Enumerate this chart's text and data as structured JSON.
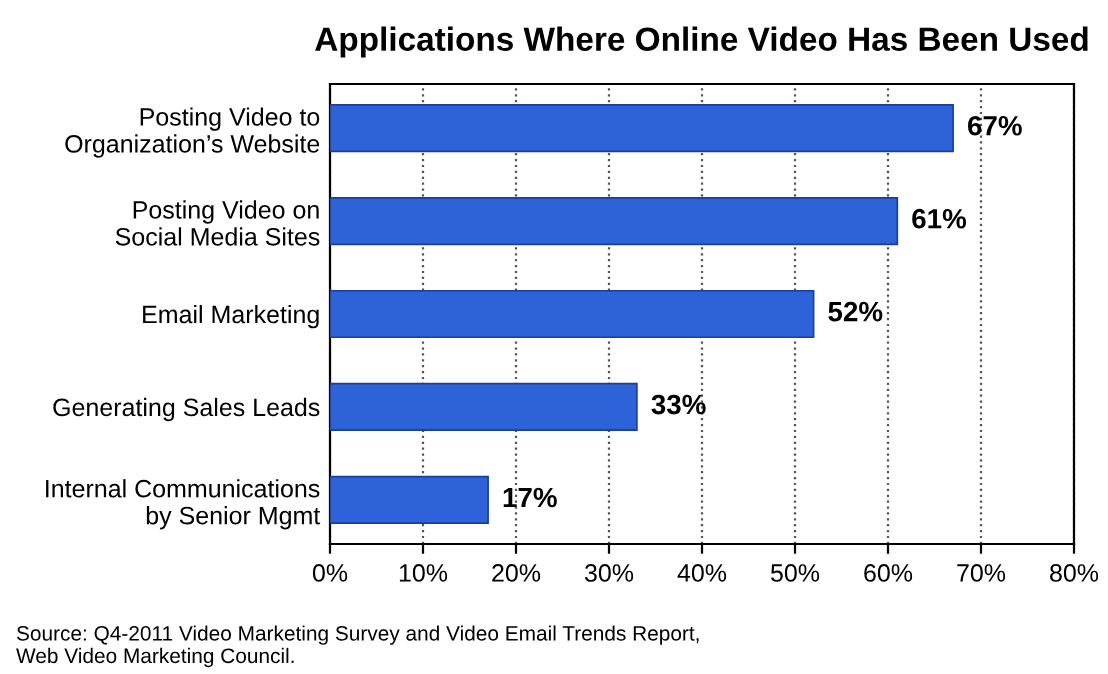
{
  "chart_data": {
    "type": "bar",
    "orientation": "horizontal",
    "title": "Applications Where Online Video Has Been Used",
    "categories": [
      "Posting Video to\nOrganization’s Website",
      "Posting Video on\nSocial Media Sites",
      "Email Marketing",
      "Generating Sales Leads",
      "Internal Communications\nby Senior Mgmt"
    ],
    "values": [
      67,
      61,
      52,
      33,
      17
    ],
    "value_labels": [
      "67%",
      "61%",
      "52%",
      "33%",
      "17%"
    ],
    "color": "#2d62d8",
    "xlim": [
      0,
      80
    ],
    "xticks": [
      {
        "value": 0,
        "label": "0%"
      },
      {
        "value": 10,
        "label": "10%"
      },
      {
        "value": 20,
        "label": "20%"
      },
      {
        "value": 30,
        "label": "30%"
      },
      {
        "value": 40,
        "label": "40%"
      },
      {
        "value": 50,
        "label": "50%"
      },
      {
        "value": 60,
        "label": "60%"
      },
      {
        "value": 70,
        "label": "70%"
      },
      {
        "value": 80,
        "label": "80%"
      }
    ],
    "grid": "x",
    "annotations": [
      "Source: Q4-2011 Video Marketing Survey and Video Email Trends Report,\nWeb Video Marketing Council."
    ]
  }
}
